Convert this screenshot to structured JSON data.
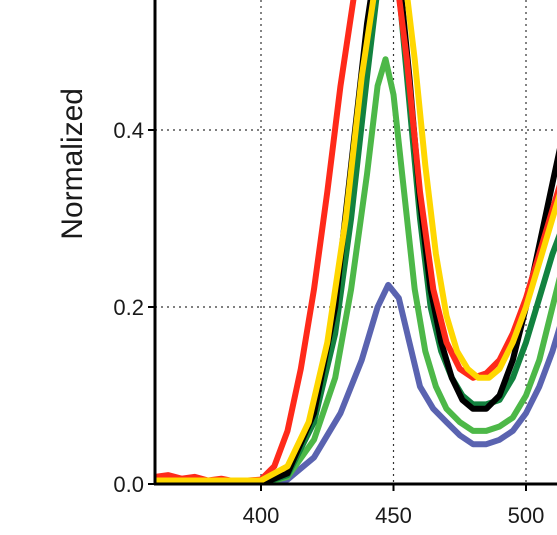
{
  "chart_data": {
    "type": "line",
    "ylabel": "Normalized",
    "xlim": [
      360,
      515
    ],
    "ylim": [
      0.0,
      0.55
    ],
    "grid": true,
    "x_ticks": [
      400,
      450,
      500
    ],
    "x_tick_labels": [
      "400",
      "450",
      "500"
    ],
    "y_ticks": [
      0.0,
      0.2,
      0.4
    ],
    "y_tick_labels": [
      "0.0",
      "0.2",
      "0.4"
    ],
    "series": [
      {
        "color": "#5a63b0",
        "x": [
          360,
          400,
          410,
          420,
          430,
          438,
          444,
          448,
          452,
          456,
          460,
          465,
          470,
          475,
          480,
          485,
          490,
          495,
          500,
          505,
          510,
          515
        ],
        "y": [
          0.0,
          0.0,
          0.005,
          0.03,
          0.08,
          0.14,
          0.2,
          0.225,
          0.21,
          0.16,
          0.11,
          0.085,
          0.07,
          0.055,
          0.045,
          0.045,
          0.05,
          0.06,
          0.08,
          0.11,
          0.15,
          0.2
        ]
      },
      {
        "color": "#4db848",
        "x": [
          360,
          400,
          410,
          420,
          428,
          434,
          440,
          444,
          447,
          450,
          454,
          458,
          462,
          466,
          470,
          475,
          480,
          485,
          490,
          495,
          500,
          505,
          510,
          515
        ],
        "y": [
          0.0,
          0.0,
          0.008,
          0.05,
          0.12,
          0.22,
          0.35,
          0.45,
          0.48,
          0.44,
          0.33,
          0.22,
          0.15,
          0.11,
          0.085,
          0.07,
          0.06,
          0.06,
          0.065,
          0.075,
          0.1,
          0.14,
          0.2,
          0.26
        ]
      },
      {
        "color": "#12823f",
        "x": [
          360,
          400,
          410,
          420,
          428,
          434,
          440,
          444,
          448,
          452,
          456,
          460,
          464,
          468,
          472,
          476,
          480,
          485,
          490,
          495,
          500,
          505,
          510,
          515
        ],
        "y": [
          0.0,
          0.0,
          0.01,
          0.07,
          0.17,
          0.3,
          0.46,
          0.56,
          0.6,
          0.56,
          0.43,
          0.3,
          0.2,
          0.15,
          0.12,
          0.1,
          0.09,
          0.09,
          0.095,
          0.12,
          0.16,
          0.21,
          0.26,
          0.3
        ]
      },
      {
        "color": "#000000",
        "x": [
          360,
          400,
          410,
          420,
          428,
          434,
          440,
          444,
          448,
          452,
          456,
          460,
          464,
          468,
          472,
          476,
          480,
          485,
          490,
          495,
          500,
          505,
          510,
          515
        ],
        "y": [
          0.0,
          0.0,
          0.012,
          0.08,
          0.2,
          0.36,
          0.52,
          0.6,
          0.62,
          0.58,
          0.46,
          0.32,
          0.22,
          0.16,
          0.12,
          0.095,
          0.085,
          0.085,
          0.1,
          0.14,
          0.2,
          0.27,
          0.34,
          0.41
        ]
      },
      {
        "color": "#ff2a1a",
        "x": [
          360,
          365,
          370,
          375,
          380,
          385,
          390,
          395,
          400,
          405,
          410,
          415,
          420,
          425,
          430,
          435,
          440,
          445,
          450,
          455,
          460,
          465,
          470,
          475,
          480,
          485,
          490,
          495,
          500,
          505,
          510,
          515
        ],
        "y": [
          0.008,
          0.01,
          0.006,
          0.008,
          0.004,
          0.006,
          0.003,
          0.004,
          0.005,
          0.02,
          0.06,
          0.13,
          0.22,
          0.33,
          0.45,
          0.55,
          0.62,
          0.64,
          0.6,
          0.48,
          0.33,
          0.22,
          0.16,
          0.13,
          0.12,
          0.125,
          0.14,
          0.17,
          0.21,
          0.26,
          0.31,
          0.36
        ]
      },
      {
        "color": "#ffd700",
        "x": [
          360,
          400,
          410,
          418,
          425,
          432,
          438,
          444,
          449,
          454,
          458,
          462,
          466,
          470,
          474,
          478,
          482,
          486,
          490,
          495,
          500,
          505,
          510,
          515
        ],
        "y": [
          0.004,
          0.004,
          0.02,
          0.07,
          0.16,
          0.3,
          0.46,
          0.58,
          0.62,
          0.58,
          0.48,
          0.36,
          0.26,
          0.19,
          0.15,
          0.13,
          0.12,
          0.12,
          0.13,
          0.16,
          0.2,
          0.25,
          0.3,
          0.35
        ]
      }
    ]
  }
}
